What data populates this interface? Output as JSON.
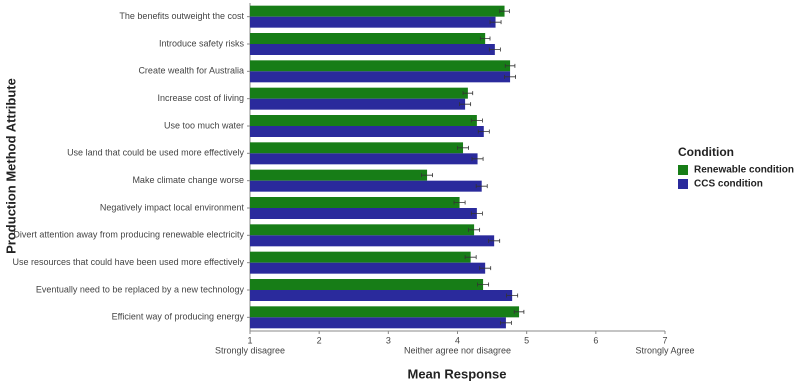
{
  "chart_data": {
    "type": "barh",
    "xlabel": "Mean Response",
    "ylabel": "Production Method Attribute",
    "legend_title": "Condition",
    "legend_position": "right",
    "categories": [
      "The benefits outweight the cost",
      "Introduce safety risks",
      "Create wealth for Australia",
      "Increase cost of living",
      "Use too much water",
      "Use land that could be used more effectively",
      "Make climate change worse",
      "Negatively impact local environment",
      "Divert attention away from producing renewable electricity",
      "Use resources that could have been used more effectively",
      "Eventually need to be replaced by a new technology",
      "Efficient way of producing energy"
    ],
    "series": [
      {
        "name": "Renewable condition",
        "color": "#177d17",
        "values": [
          4.68,
          4.4,
          4.76,
          4.15,
          4.28,
          4.08,
          3.56,
          4.03,
          4.24,
          4.19,
          4.37,
          4.89
        ],
        "errors": [
          0.07,
          0.07,
          0.07,
          0.07,
          0.08,
          0.08,
          0.08,
          0.08,
          0.08,
          0.08,
          0.08,
          0.07
        ]
      },
      {
        "name": "CCS condition",
        "color": "#2a2a9c",
        "values": [
          4.55,
          4.54,
          4.76,
          4.11,
          4.38,
          4.29,
          4.35,
          4.28,
          4.53,
          4.4,
          4.79,
          4.7
        ],
        "errors": [
          0.08,
          0.08,
          0.08,
          0.08,
          0.08,
          0.08,
          0.08,
          0.08,
          0.08,
          0.08,
          0.08,
          0.08
        ]
      }
    ],
    "xlim": [
      1,
      7
    ],
    "xticks": [
      1,
      2,
      3,
      4,
      5,
      6,
      7
    ],
    "anchor_labels": [
      {
        "value": 1,
        "label": "Strongly disagree"
      },
      {
        "value": 4,
        "label": "Neither agree nor disagree"
      },
      {
        "value": 7,
        "label": "Strongly Agree"
      }
    ],
    "grid": false
  }
}
